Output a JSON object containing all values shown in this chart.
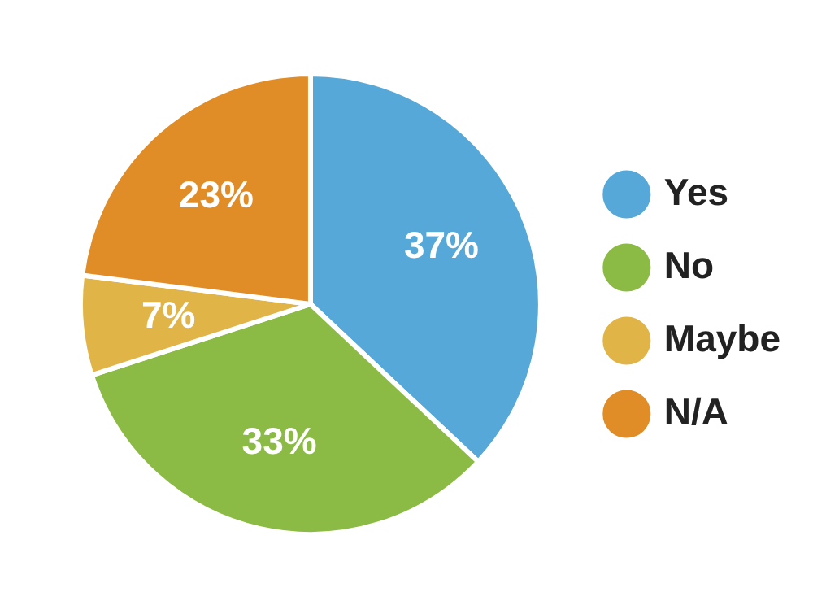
{
  "chart_data": {
    "type": "pie",
    "categories": [
      "Yes",
      "No",
      "Maybe",
      "N/A"
    ],
    "values": [
      37,
      33,
      7,
      23
    ],
    "colors": [
      "#55a8d8",
      "#8cbb45",
      "#e0b447",
      "#e08c27"
    ],
    "value_labels": [
      "37%",
      "33%",
      "7%",
      "23%"
    ],
    "legend": "right"
  }
}
